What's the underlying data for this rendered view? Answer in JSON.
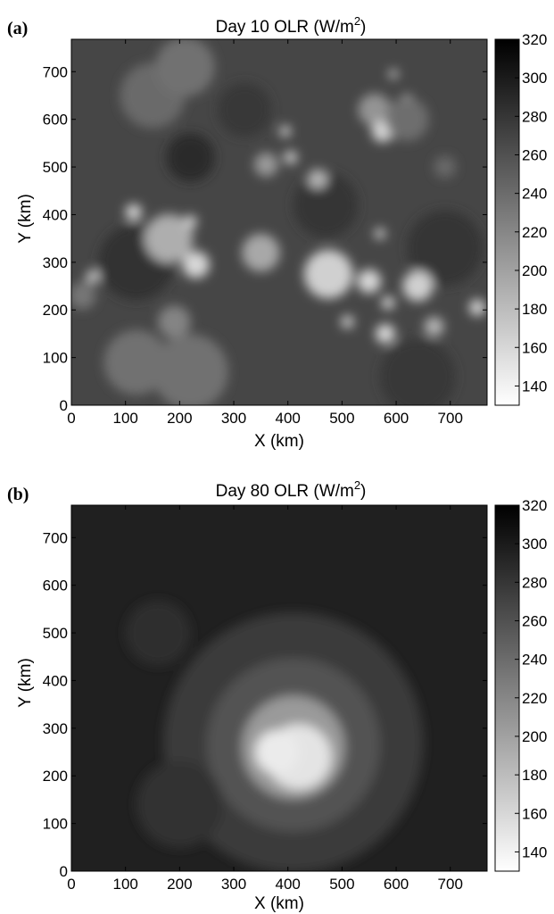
{
  "chart_data": [
    {
      "type": "heatmap",
      "panel_label": "(a)",
      "title": "Day 10 OLR (W/m",
      "title_sup": "2",
      "title_end": ")",
      "xlabel": "X (km)",
      "ylabel": "Y (km)",
      "xlim": [
        0,
        768
      ],
      "ylim": [
        0,
        768
      ],
      "xticks": [
        0,
        100,
        200,
        300,
        400,
        500,
        600,
        700
      ],
      "yticks": [
        0,
        100,
        200,
        300,
        400,
        500,
        600,
        700
      ],
      "colorbar": {
        "range": [
          130,
          320
        ],
        "ticks": [
          140,
          160,
          180,
          200,
          220,
          240,
          260,
          280,
          300,
          320
        ]
      },
      "background_value": 268,
      "features": [
        {
          "x": 150,
          "y": 650,
          "r": 60,
          "v": 240
        },
        {
          "x": 210,
          "y": 710,
          "r": 55,
          "v": 236
        },
        {
          "x": 180,
          "y": 350,
          "r": 45,
          "v": 190
        },
        {
          "x": 230,
          "y": 295,
          "r": 25,
          "v": 160
        },
        {
          "x": 115,
          "y": 405,
          "r": 15,
          "v": 160
        },
        {
          "x": 220,
          "y": 385,
          "r": 12,
          "v": 165
        },
        {
          "x": 40,
          "y": 270,
          "r": 12,
          "v": 165
        },
        {
          "x": 350,
          "y": 320,
          "r": 35,
          "v": 195
        },
        {
          "x": 395,
          "y": 575,
          "r": 10,
          "v": 160
        },
        {
          "x": 405,
          "y": 520,
          "r": 12,
          "v": 165
        },
        {
          "x": 360,
          "y": 505,
          "r": 22,
          "v": 205
        },
        {
          "x": 455,
          "y": 475,
          "r": 18,
          "v": 185
        },
        {
          "x": 475,
          "y": 275,
          "r": 45,
          "v": 165
        },
        {
          "x": 550,
          "y": 260,
          "r": 22,
          "v": 160
        },
        {
          "x": 560,
          "y": 620,
          "r": 30,
          "v": 210
        },
        {
          "x": 575,
          "y": 575,
          "r": 20,
          "v": 160
        },
        {
          "x": 595,
          "y": 695,
          "r": 8,
          "v": 160
        },
        {
          "x": 620,
          "y": 640,
          "r": 10,
          "v": 160
        },
        {
          "x": 620,
          "y": 600,
          "r": 40,
          "v": 238
        },
        {
          "x": 640,
          "y": 250,
          "r": 28,
          "v": 165
        },
        {
          "x": 585,
          "y": 215,
          "r": 12,
          "v": 160
        },
        {
          "x": 580,
          "y": 150,
          "r": 18,
          "v": 158
        },
        {
          "x": 670,
          "y": 165,
          "r": 18,
          "v": 185
        },
        {
          "x": 750,
          "y": 205,
          "r": 15,
          "v": 160
        },
        {
          "x": 570,
          "y": 360,
          "r": 10,
          "v": 165
        },
        {
          "x": 510,
          "y": 175,
          "r": 12,
          "v": 170
        },
        {
          "x": 190,
          "y": 175,
          "r": 30,
          "v": 222
        },
        {
          "x": 240,
          "y": 130,
          "r": 12,
          "v": 175
        },
        {
          "x": 120,
          "y": 90,
          "r": 60,
          "v": 236
        },
        {
          "x": 220,
          "y": 70,
          "r": 70,
          "v": 236
        },
        {
          "x": 20,
          "y": 230,
          "r": 25,
          "v": 232
        },
        {
          "x": 690,
          "y": 500,
          "r": 20,
          "v": 242
        }
      ],
      "dark_regions": [
        {
          "x": 220,
          "y": 520,
          "r": 45,
          "v": 288
        },
        {
          "x": 120,
          "y": 300,
          "r": 70,
          "v": 282
        },
        {
          "x": 470,
          "y": 420,
          "r": 60,
          "v": 280
        },
        {
          "x": 690,
          "y": 330,
          "r": 70,
          "v": 280
        },
        {
          "x": 320,
          "y": 620,
          "r": 50,
          "v": 278
        },
        {
          "x": 640,
          "y": 60,
          "r": 70,
          "v": 279
        }
      ]
    },
    {
      "type": "heatmap",
      "panel_label": "(b)",
      "title": "Day 80 OLR (W/m",
      "title_sup": "2",
      "title_end": ")",
      "xlabel": "X (km)",
      "ylabel": "Y (km)",
      "xlim": [
        0,
        768
      ],
      "ylim": [
        0,
        768
      ],
      "xticks": [
        0,
        100,
        200,
        300,
        400,
        500,
        600,
        700
      ],
      "yticks": [
        0,
        100,
        200,
        300,
        400,
        500,
        600,
        700
      ],
      "colorbar": {
        "range": [
          130,
          320
        ],
        "ticks": [
          140,
          160,
          180,
          200,
          220,
          240,
          260,
          280,
          300,
          320
        ]
      },
      "background_value": 296,
      "features": [
        {
          "x": 410,
          "y": 270,
          "r": 240,
          "v": 276
        },
        {
          "x": 410,
          "y": 265,
          "r": 160,
          "v": 258
        },
        {
          "x": 410,
          "y": 260,
          "r": 95,
          "v": 205
        },
        {
          "x": 420,
          "y": 240,
          "r": 60,
          "v": 150
        },
        {
          "x": 380,
          "y": 250,
          "r": 40,
          "v": 145
        },
        {
          "x": 200,
          "y": 140,
          "r": 80,
          "v": 283
        },
        {
          "x": 160,
          "y": 500,
          "r": 60,
          "v": 286
        }
      ],
      "dark_regions": [
        {
          "x": 380,
          "y": 440,
          "r": 30,
          "v": 270
        }
      ]
    }
  ]
}
